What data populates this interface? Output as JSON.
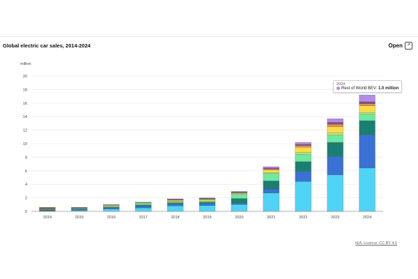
{
  "header": {
    "title": "Global electric car sales, 2014-2024",
    "open_label": "Open",
    "open_icon": "external-link-icon"
  },
  "footer": {
    "license": "IEA. Licence: CC BY 4.0"
  },
  "tooltip": {
    "year": "2024",
    "series": "Rest of World BEV:",
    "value": "1.0 million",
    "color": "#b68be3"
  },
  "chart_data": {
    "type": "bar",
    "stacked": true,
    "ylabel": "million",
    "ylim": [
      0,
      20
    ],
    "yticks": [
      0,
      2,
      4,
      6,
      8,
      10,
      12,
      14,
      16,
      18,
      20
    ],
    "grid": true,
    "categories": [
      "2014",
      "2015",
      "2016",
      "2017",
      "2018",
      "2019",
      "2020",
      "2021",
      "2022",
      "2023",
      "2024"
    ],
    "series": [
      {
        "color": "#4fd4f5",
        "values": [
          0.05,
          0.15,
          0.35,
          0.5,
          0.8,
          0.85,
          1.0,
          2.7,
          4.4,
          5.4,
          6.4
        ]
      },
      {
        "color": "#3a72d4",
        "values": [
          0.05,
          0.1,
          0.15,
          0.25,
          0.25,
          0.3,
          0.2,
          0.55,
          1.5,
          2.7,
          4.9
        ]
      },
      {
        "color": "#1a7f72",
        "values": [
          0.1,
          0.1,
          0.1,
          0.2,
          0.2,
          0.2,
          0.7,
          1.25,
          1.45,
          2.1,
          2.1
        ]
      },
      {
        "color": "#6fe8a0",
        "values": [
          0.05,
          0.1,
          0.1,
          0.25,
          0.15,
          0.15,
          0.6,
          1.1,
          1.1,
          1.1,
          1.0
        ]
      },
      {
        "color": "#cbe86a",
        "values": [
          0.05,
          0.0,
          0.1,
          0.05,
          0.1,
          0.2,
          0.15,
          0.1,
          0.25,
          0.3,
          0.2
        ]
      },
      {
        "color": "#f7dd4d",
        "values": [
          0.05,
          0.0,
          0.1,
          0.05,
          0.15,
          0.1,
          0.05,
          0.4,
          0.75,
          0.9,
          1.0
        ]
      },
      {
        "color": "#f0923c",
        "values": [
          0.0,
          0.0,
          0.0,
          0.0,
          0.05,
          0.05,
          0.05,
          0.15,
          0.25,
          0.35,
          0.3
        ]
      },
      {
        "color": "#7a4fa0",
        "values": [
          0.05,
          0.05,
          0.1,
          0.05,
          0.1,
          0.1,
          0.1,
          0.15,
          0.2,
          0.3,
          0.3
        ]
      },
      {
        "color": "#b68be3",
        "values": [
          0.0,
          0.0,
          0.0,
          0.0,
          0.05,
          0.05,
          0.1,
          0.2,
          0.3,
          0.55,
          1.0
        ]
      },
      {
        "color": "#6b7a3a",
        "values": [
          0.2,
          0.1,
          0.0,
          0.0,
          0.0,
          0.0,
          0.0,
          0.0,
          0.0,
          0.0,
          0.0
        ]
      }
    ]
  }
}
